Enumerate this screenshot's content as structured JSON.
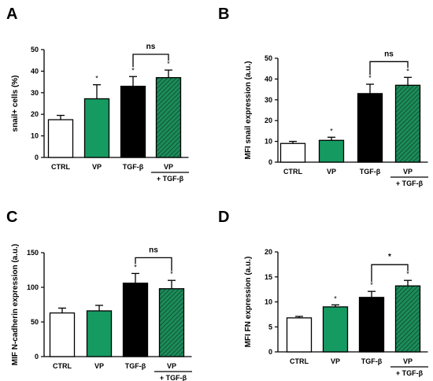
{
  "colors": {
    "ctrl": "#ffffff",
    "vp": "#159a62",
    "tgf": "#000000",
    "vp_tgf": "#1c8c5a",
    "hatch": "#0a3d26",
    "axis": "#000000"
  },
  "chart_data": [
    {
      "panel": "A",
      "type": "bar",
      "ylabel": "snail+ cells (%)",
      "ylim": [
        0,
        50
      ],
      "yticks": [
        0,
        10,
        20,
        30,
        40,
        50
      ],
      "categories": [
        "CTRL",
        "VP",
        "TGF-β",
        "VP"
      ],
      "category_sublabel": "+ TGF-β",
      "values": [
        17.5,
        27.2,
        33.0,
        37.0
      ],
      "errors": [
        2.0,
        6.5,
        4.5,
        3.5
      ],
      "significance": [
        "",
        "*",
        "*",
        "*"
      ],
      "comparison": {
        "between": [
          2,
          3
        ],
        "label": "ns"
      }
    },
    {
      "panel": "B",
      "type": "bar",
      "ylabel": "MFI snail expression (a.u.)",
      "ylim": [
        0,
        50
      ],
      "yticks": [
        0,
        10,
        20,
        30,
        40,
        50
      ],
      "categories": [
        "CTRL",
        "VP",
        "TGF-β",
        "VP"
      ],
      "category_sublabel": "+ TGF-β",
      "values": [
        9.0,
        10.5,
        33.0,
        37.0
      ],
      "errors": [
        1.0,
        1.5,
        4.5,
        3.8
      ],
      "significance": [
        "",
        "*",
        "*",
        "*"
      ],
      "comparison": {
        "between": [
          2,
          3
        ],
        "label": "ns"
      }
    },
    {
      "panel": "C",
      "type": "bar",
      "ylabel": "MIF N-cadherin expression (a.u.)",
      "ylim": [
        0,
        150
      ],
      "yticks": [
        0,
        50,
        100,
        150
      ],
      "categories": [
        "CTRL",
        "VP",
        "TGF-β",
        "VP"
      ],
      "category_sublabel": "+ TGF-β",
      "values": [
        63,
        66,
        106,
        98
      ],
      "errors": [
        7,
        8,
        14,
        12
      ],
      "significance": [
        "",
        "",
        "*",
        "*"
      ],
      "comparison": {
        "between": [
          2,
          3
        ],
        "label": "ns"
      }
    },
    {
      "panel": "D",
      "type": "bar",
      "ylabel": "MFI FN expression (a.u.)",
      "ylim": [
        0,
        20
      ],
      "yticks": [
        0,
        5,
        10,
        15,
        20
      ],
      "categories": [
        "CTRL",
        "VP",
        "TGF-β",
        "VP"
      ],
      "category_sublabel": "+ TGF-β",
      "values": [
        6.8,
        9.0,
        10.9,
        13.2
      ],
      "errors": [
        0.3,
        0.4,
        1.2,
        1.1
      ],
      "significance": [
        "",
        "*",
        "*",
        "*"
      ],
      "comparison": {
        "between": [
          2,
          3
        ],
        "label": "*"
      }
    }
  ]
}
